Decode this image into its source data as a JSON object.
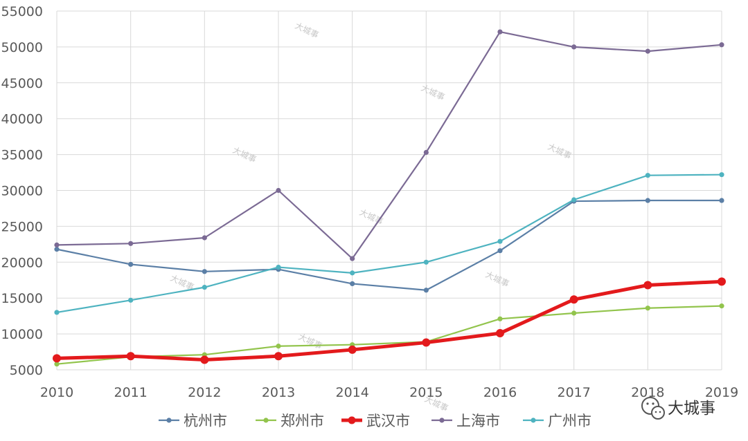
{
  "chart_data": {
    "type": "line",
    "x": [
      "2010",
      "2011",
      "2012",
      "2013",
      "2014",
      "2015",
      "2016",
      "2017",
      "2018",
      "2019"
    ],
    "ylim": [
      5000,
      55000
    ],
    "yticks": [
      5000,
      10000,
      15000,
      20000,
      25000,
      30000,
      35000,
      40000,
      45000,
      50000,
      55000
    ],
    "grid": true,
    "legend_position": "bottom",
    "series": [
      {
        "name": "杭州市",
        "color": "#5b7fa6",
        "values": [
          21800,
          19700,
          18700,
          19000,
          17000,
          16100,
          21600,
          28500,
          28600,
          28600
        ]
      },
      {
        "name": "郑州市",
        "color": "#92c44c",
        "values": [
          5800,
          6800,
          7100,
          8300,
          8500,
          8900,
          12100,
          12900,
          13600,
          13900
        ]
      },
      {
        "name": "武汉市",
        "color": "#e31a1c",
        "values": [
          6600,
          6900,
          6400,
          6900,
          7800,
          8800,
          10100,
          14800,
          16800,
          17300
        ]
      },
      {
        "name": "上海市",
        "color": "#7b6a94",
        "values": [
          22400,
          22600,
          23400,
          30000,
          20500,
          35300,
          52100,
          50000,
          49400,
          50300
        ]
      },
      {
        "name": "广州市",
        "color": "#4eb3c0",
        "values": [
          13000,
          14700,
          16500,
          19300,
          18500,
          20000,
          22900,
          28700,
          32100,
          32200
        ]
      }
    ]
  },
  "watermark": "大城事",
  "brand": {
    "name": "大城事",
    "icon": "wechat-icon"
  }
}
